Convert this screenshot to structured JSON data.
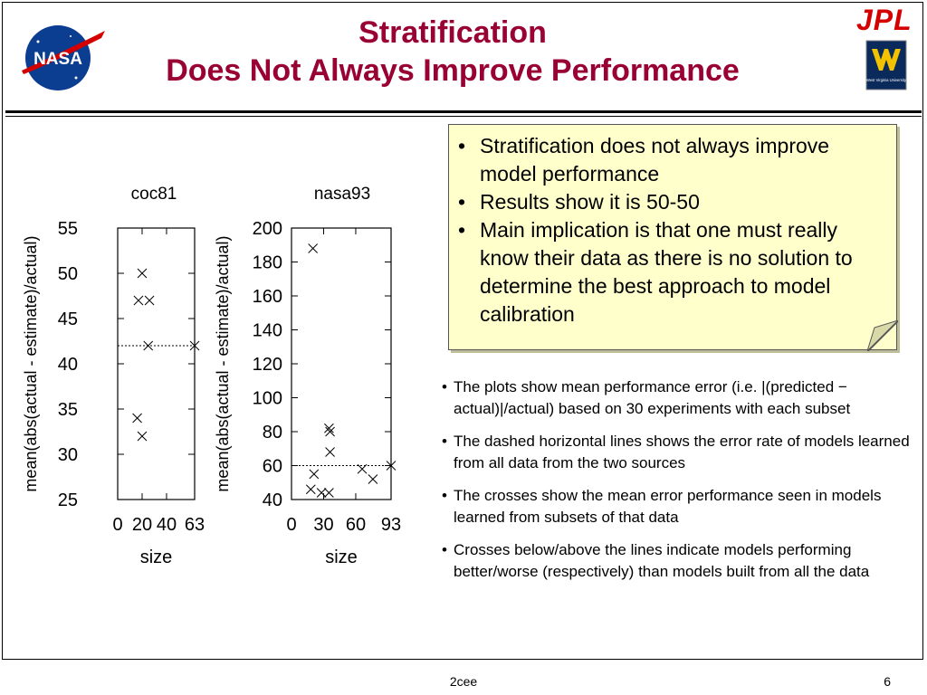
{
  "slide": {
    "title_line1": "Stratification",
    "title_line2": "Does Not Always Improve Performance",
    "footer_center": "2cee",
    "page_number": "6"
  },
  "logos": {
    "nasa_text": "NASA",
    "jpl_text": "JPL",
    "wvu_text": "West Virginia University"
  },
  "note_box": {
    "items": [
      "Stratification does not always improve model performance",
      "Results show it is 50-50",
      "Main implication is that one  must really know their data as there is no solution to determine the best approach to model calibration"
    ]
  },
  "bullets": [
    "The plots show mean performance error (i.e. |(predicted − actual)|/actual) based on 30 experiments with each subset",
    "The dashed horizontal lines shows the error rate of models learned from all data from the two sources",
    "The crosses show the mean error performance seen in models learned from subsets of that data",
    "Crosses below/above the lines indicate models performing better/worse (respectively) than models built from all the data"
  ],
  "chart_data": [
    {
      "type": "scatter",
      "title": "coc81",
      "xlabel": "size",
      "ylabel": "mean(abs(actual - estimate)/actual)",
      "xlim": [
        0,
        63
      ],
      "ylim": [
        25,
        55
      ],
      "xticks": [
        0,
        20,
        40,
        63
      ],
      "yticks": [
        25,
        30,
        35,
        40,
        45,
        50,
        55
      ],
      "x_tick_labels": [
        "0",
        "20",
        "40",
        "63"
      ],
      "y_tick_labels": [
        "25",
        "30",
        "35",
        "40",
        "45",
        "50",
        "55"
      ],
      "baseline": 42,
      "points": [
        {
          "x": 20,
          "y": 50
        },
        {
          "x": 17,
          "y": 47
        },
        {
          "x": 26,
          "y": 47
        },
        {
          "x": 25,
          "y": 42
        },
        {
          "x": 63,
          "y": 42
        },
        {
          "x": 16,
          "y": 34
        },
        {
          "x": 20,
          "y": 32
        }
      ]
    },
    {
      "type": "scatter",
      "title": "nasa93",
      "xlabel": "size",
      "ylabel": "mean(abs(actual - estimate)/actual)",
      "xlim": [
        0,
        93
      ],
      "ylim": [
        40,
        200
      ],
      "xticks": [
        0,
        30,
        60,
        93
      ],
      "yticks": [
        40,
        60,
        80,
        100,
        120,
        140,
        160,
        180,
        200
      ],
      "x_tick_labels": [
        "0",
        "30",
        "60",
        "93"
      ],
      "y_tick_labels": [
        "40",
        "60",
        "80",
        "100",
        "120",
        "140",
        "160",
        "180",
        "200"
      ],
      "baseline": 60,
      "points": [
        {
          "x": 20,
          "y": 188
        },
        {
          "x": 35,
          "y": 82
        },
        {
          "x": 36,
          "y": 80
        },
        {
          "x": 36,
          "y": 68
        },
        {
          "x": 21,
          "y": 55
        },
        {
          "x": 66,
          "y": 58
        },
        {
          "x": 93,
          "y": 60
        },
        {
          "x": 76,
          "y": 52
        },
        {
          "x": 18,
          "y": 46
        },
        {
          "x": 28,
          "y": 44
        },
        {
          "x": 35,
          "y": 44
        }
      ]
    }
  ]
}
